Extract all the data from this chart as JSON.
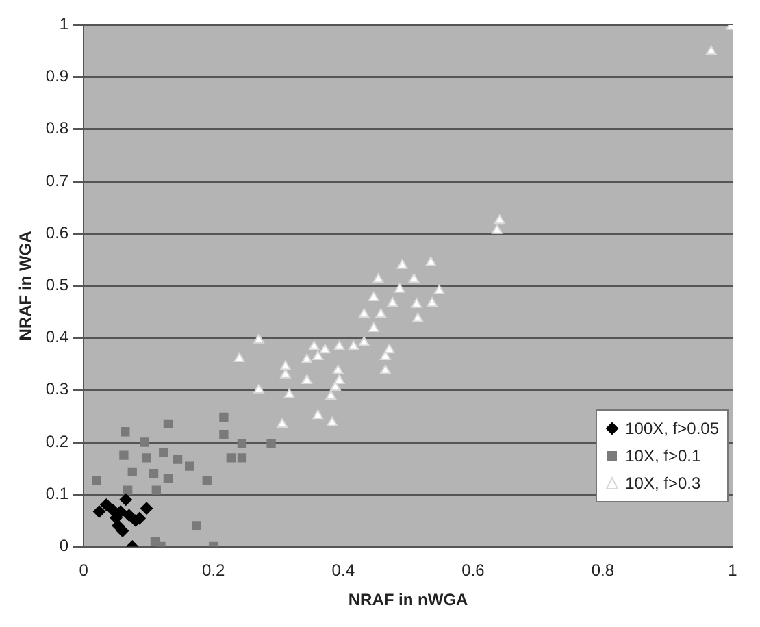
{
  "chart_data": {
    "type": "scatter",
    "xlabel": "NRAF in nWGA",
    "ylabel": "NRAF in WGA",
    "xlim": [
      0,
      1
    ],
    "xticks": [
      0,
      0.2,
      0.4,
      0.6,
      0.8,
      1
    ],
    "ylim": [
      0,
      1
    ],
    "yticks": [
      0,
      0.1,
      0.2,
      0.3,
      0.4,
      0.5,
      0.6,
      0.7,
      0.8,
      0.9,
      1
    ],
    "grid": "y",
    "legend": "bottom right",
    "series": [
      {
        "name": "100X, f>0.05",
        "color": "#000000",
        "marker": "diamond",
        "x": [
          0.024,
          0.035,
          0.057,
          0.053,
          0.06,
          0.086,
          0.097,
          0.075,
          0.08,
          0.045,
          0.07,
          0.065,
          0.05
        ],
        "values": [
          0.067,
          0.08,
          0.067,
          0.04,
          0.03,
          0.054,
          0.073,
          0.0,
          0.05,
          0.07,
          0.06,
          0.09,
          0.055
        ]
      },
      {
        "name": "10X, f>0.1",
        "color": "#7a7a7a",
        "marker": "square",
        "x": [
          0.064,
          0.13,
          0.094,
          0.062,
          0.097,
          0.123,
          0.145,
          0.163,
          0.075,
          0.108,
          0.13,
          0.02,
          0.068,
          0.112,
          0.19,
          0.216,
          0.216,
          0.227,
          0.244,
          0.244,
          0.289,
          0.174,
          0.119,
          0.2,
          0.11
        ],
        "values": [
          0.22,
          0.235,
          0.2,
          0.175,
          0.17,
          0.18,
          0.167,
          0.154,
          0.143,
          0.14,
          0.13,
          0.127,
          0.108,
          0.108,
          0.127,
          0.248,
          0.215,
          0.17,
          0.17,
          0.197,
          0.197,
          0.04,
          0.0,
          0.0,
          0.01
        ]
      },
      {
        "name": "10X, f>0.3",
        "color": "#ffffff",
        "marker": "triangle",
        "x": [
          0.491,
          0.535,
          0.454,
          0.509,
          0.548,
          0.487,
          0.447,
          0.476,
          0.513,
          0.537,
          0.432,
          0.458,
          0.515,
          0.447,
          0.432,
          0.416,
          0.471,
          0.465,
          0.465,
          0.394,
          0.372,
          0.355,
          0.361,
          0.344,
          0.311,
          0.311,
          0.344,
          0.392,
          0.394,
          0.388,
          0.317,
          0.381,
          0.361,
          0.383,
          0.306,
          0.27,
          0.24,
          0.27,
          0.641,
          0.637,
          0.967,
          0.998
        ],
        "values": [
          0.539,
          0.544,
          0.512,
          0.512,
          0.49,
          0.493,
          0.477,
          0.466,
          0.464,
          0.466,
          0.445,
          0.445,
          0.437,
          0.418,
          0.391,
          0.383,
          0.377,
          0.364,
          0.337,
          0.383,
          0.377,
          0.383,
          0.364,
          0.358,
          0.345,
          0.329,
          0.318,
          0.337,
          0.318,
          0.305,
          0.291,
          0.288,
          0.251,
          0.237,
          0.234,
          0.396,
          0.36,
          0.3,
          0.625,
          0.606,
          0.949,
          0.997
        ]
      }
    ]
  }
}
